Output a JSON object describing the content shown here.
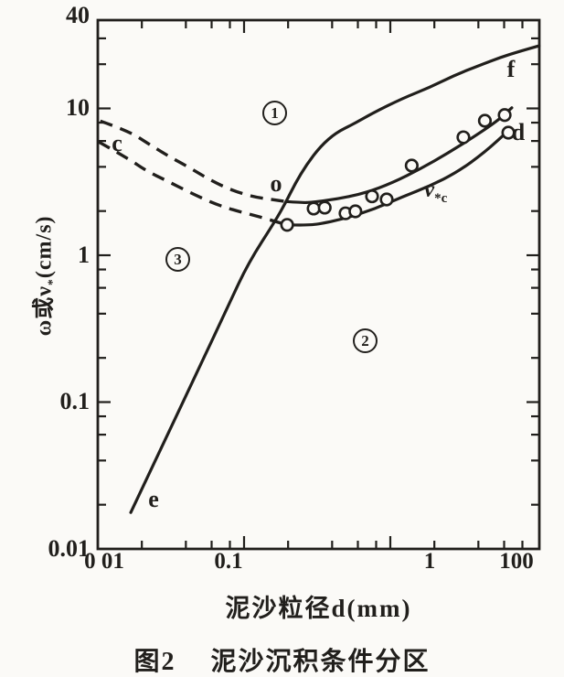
{
  "figure": {
    "caption_prefix": "图2",
    "caption": "泥沙沉积条件分区",
    "x_axis_title": "泥沙粒径d(mm)",
    "y_axis_title_pre": "ω或ν",
    "y_axis_title_sub": "*",
    "y_axis_title_post": "(cm/s)"
  },
  "labels": {
    "c": "c",
    "o": "o",
    "e": "e",
    "f": "f",
    "d": "d",
    "vstar_main": "ν",
    "vstar_sub": "*c",
    "zone1": "1",
    "zone2": "2",
    "zone3": "3"
  },
  "colors": {
    "ink": "#211f1c",
    "paper": "#fbfaf7"
  },
  "chart_data": {
    "type": "line",
    "title": "图2 泥沙沉积条件分区",
    "xlabel": "泥沙粒径d(mm)",
    "ylabel": "ω或ν*(cm/s)",
    "x_scale": "log",
    "y_scale": "log",
    "x_range": [
      0.01,
      100
    ],
    "y_range": [
      0.01,
      40
    ],
    "x_tick_labels": [
      "0 01",
      "0.1",
      "1",
      "100"
    ],
    "y_tick_labels": [
      "40",
      "10",
      "1",
      "0.1",
      "0.01"
    ],
    "grid": false,
    "legend": "none",
    "zone_labels": [
      "1",
      "2",
      "3"
    ],
    "axes_ticks": {
      "x_minor": [
        0.02,
        0.04,
        0.06,
        0.08,
        0.2,
        0.4,
        0.6,
        0.8,
        2,
        4,
        6,
        8
      ],
      "x_major": [
        0.1,
        1
      ],
      "y_minor": [
        0.02,
        0.04,
        0.06,
        0.08,
        0.2,
        0.4,
        0.6,
        0.8,
        2,
        4,
        6,
        8,
        20,
        30
      ],
      "y_major": [
        0.1,
        1,
        10
      ]
    },
    "series": [
      {
        "name": "settling-velocity-curve-e-o-f",
        "style": "solid",
        "points": [
          [
            0.0168,
            0.0177
          ],
          [
            0.0286,
            0.0545
          ],
          [
            0.0474,
            0.157
          ],
          [
            0.0784,
            0.459
          ],
          [
            0.107,
            0.887
          ],
          [
            0.165,
            1.74
          ],
          [
            0.194,
            2.32
          ],
          [
            0.224,
            3.09
          ],
          [
            0.267,
            4.13
          ],
          [
            0.333,
            5.52
          ],
          [
            0.425,
            6.83
          ],
          [
            0.563,
            7.85
          ],
          [
            0.763,
            9.32
          ],
          [
            1.21,
            11.7
          ],
          [
            1.86,
            13.9
          ],
          [
            2.74,
            16.8
          ],
          [
            4.1,
            19.7
          ],
          [
            5.62,
            22.2
          ],
          [
            7.78,
            24.6
          ],
          [
            10.4,
            26.7
          ]
        ]
      },
      {
        "name": "incipient-band-upper-dashed-c",
        "style": "dashed",
        "points": [
          [
            0.0104,
            8.2
          ],
          [
            0.0161,
            7.04
          ],
          [
            0.0221,
            5.76
          ],
          [
            0.0299,
            4.78
          ],
          [
            0.0422,
            3.96
          ],
          [
            0.0587,
            3.25
          ],
          [
            0.0817,
            2.78
          ],
          [
            0.115,
            2.5
          ],
          [
            0.154,
            2.4
          ],
          [
            0.194,
            2.32
          ]
        ]
      },
      {
        "name": "incipient-band-upper-solid",
        "style": "solid",
        "points": [
          [
            0.194,
            2.32
          ],
          [
            0.25,
            2.28
          ],
          [
            0.286,
            2.29
          ],
          [
            0.44,
            2.42
          ],
          [
            0.679,
            2.66
          ],
          [
            1.04,
            3.12
          ],
          [
            1.61,
            3.88
          ],
          [
            2.47,
            4.95
          ],
          [
            3.81,
            6.5
          ],
          [
            5.46,
            8.29
          ],
          [
            6.77,
            10.1
          ]
        ]
      },
      {
        "name": "incipient-band-lower-dashed-c",
        "style": "dashed",
        "points": [
          [
            0.0101,
            5.93
          ],
          [
            0.0161,
            4.57
          ],
          [
            0.0214,
            3.76
          ],
          [
            0.0299,
            3.2
          ],
          [
            0.0422,
            2.69
          ],
          [
            0.0614,
            2.26
          ],
          [
            0.0864,
            2.02
          ],
          [
            0.12,
            1.86
          ],
          [
            0.16,
            1.71
          ],
          [
            0.197,
            1.61
          ]
        ]
      },
      {
        "name": "incipient-band-lower-solid-v*c-d",
        "style": "solid",
        "points": [
          [
            0.197,
            1.61
          ],
          [
            0.26,
            1.6
          ],
          [
            0.331,
            1.63
          ],
          [
            0.509,
            1.8
          ],
          [
            0.785,
            2.07
          ],
          [
            1.21,
            2.5
          ],
          [
            1.86,
            2.96
          ],
          [
            2.87,
            3.68
          ],
          [
            4.43,
            5.03
          ],
          [
            6.5,
            7.13
          ]
        ]
      },
      {
        "name": "observed-data-points",
        "style": "scatter",
        "points": [
          [
            0.197,
            1.61
          ],
          [
            0.299,
            2.08
          ],
          [
            0.356,
            2.11
          ],
          [
            0.494,
            1.93
          ],
          [
            0.577,
            1.99
          ],
          [
            0.75,
            2.52
          ],
          [
            0.944,
            2.4
          ],
          [
            1.4,
            4.08
          ],
          [
            3.16,
            6.36
          ],
          [
            4.43,
            8.24
          ],
          [
            6.05,
            9.01
          ],
          [
            6.41,
            6.84
          ]
        ]
      }
    ]
  }
}
